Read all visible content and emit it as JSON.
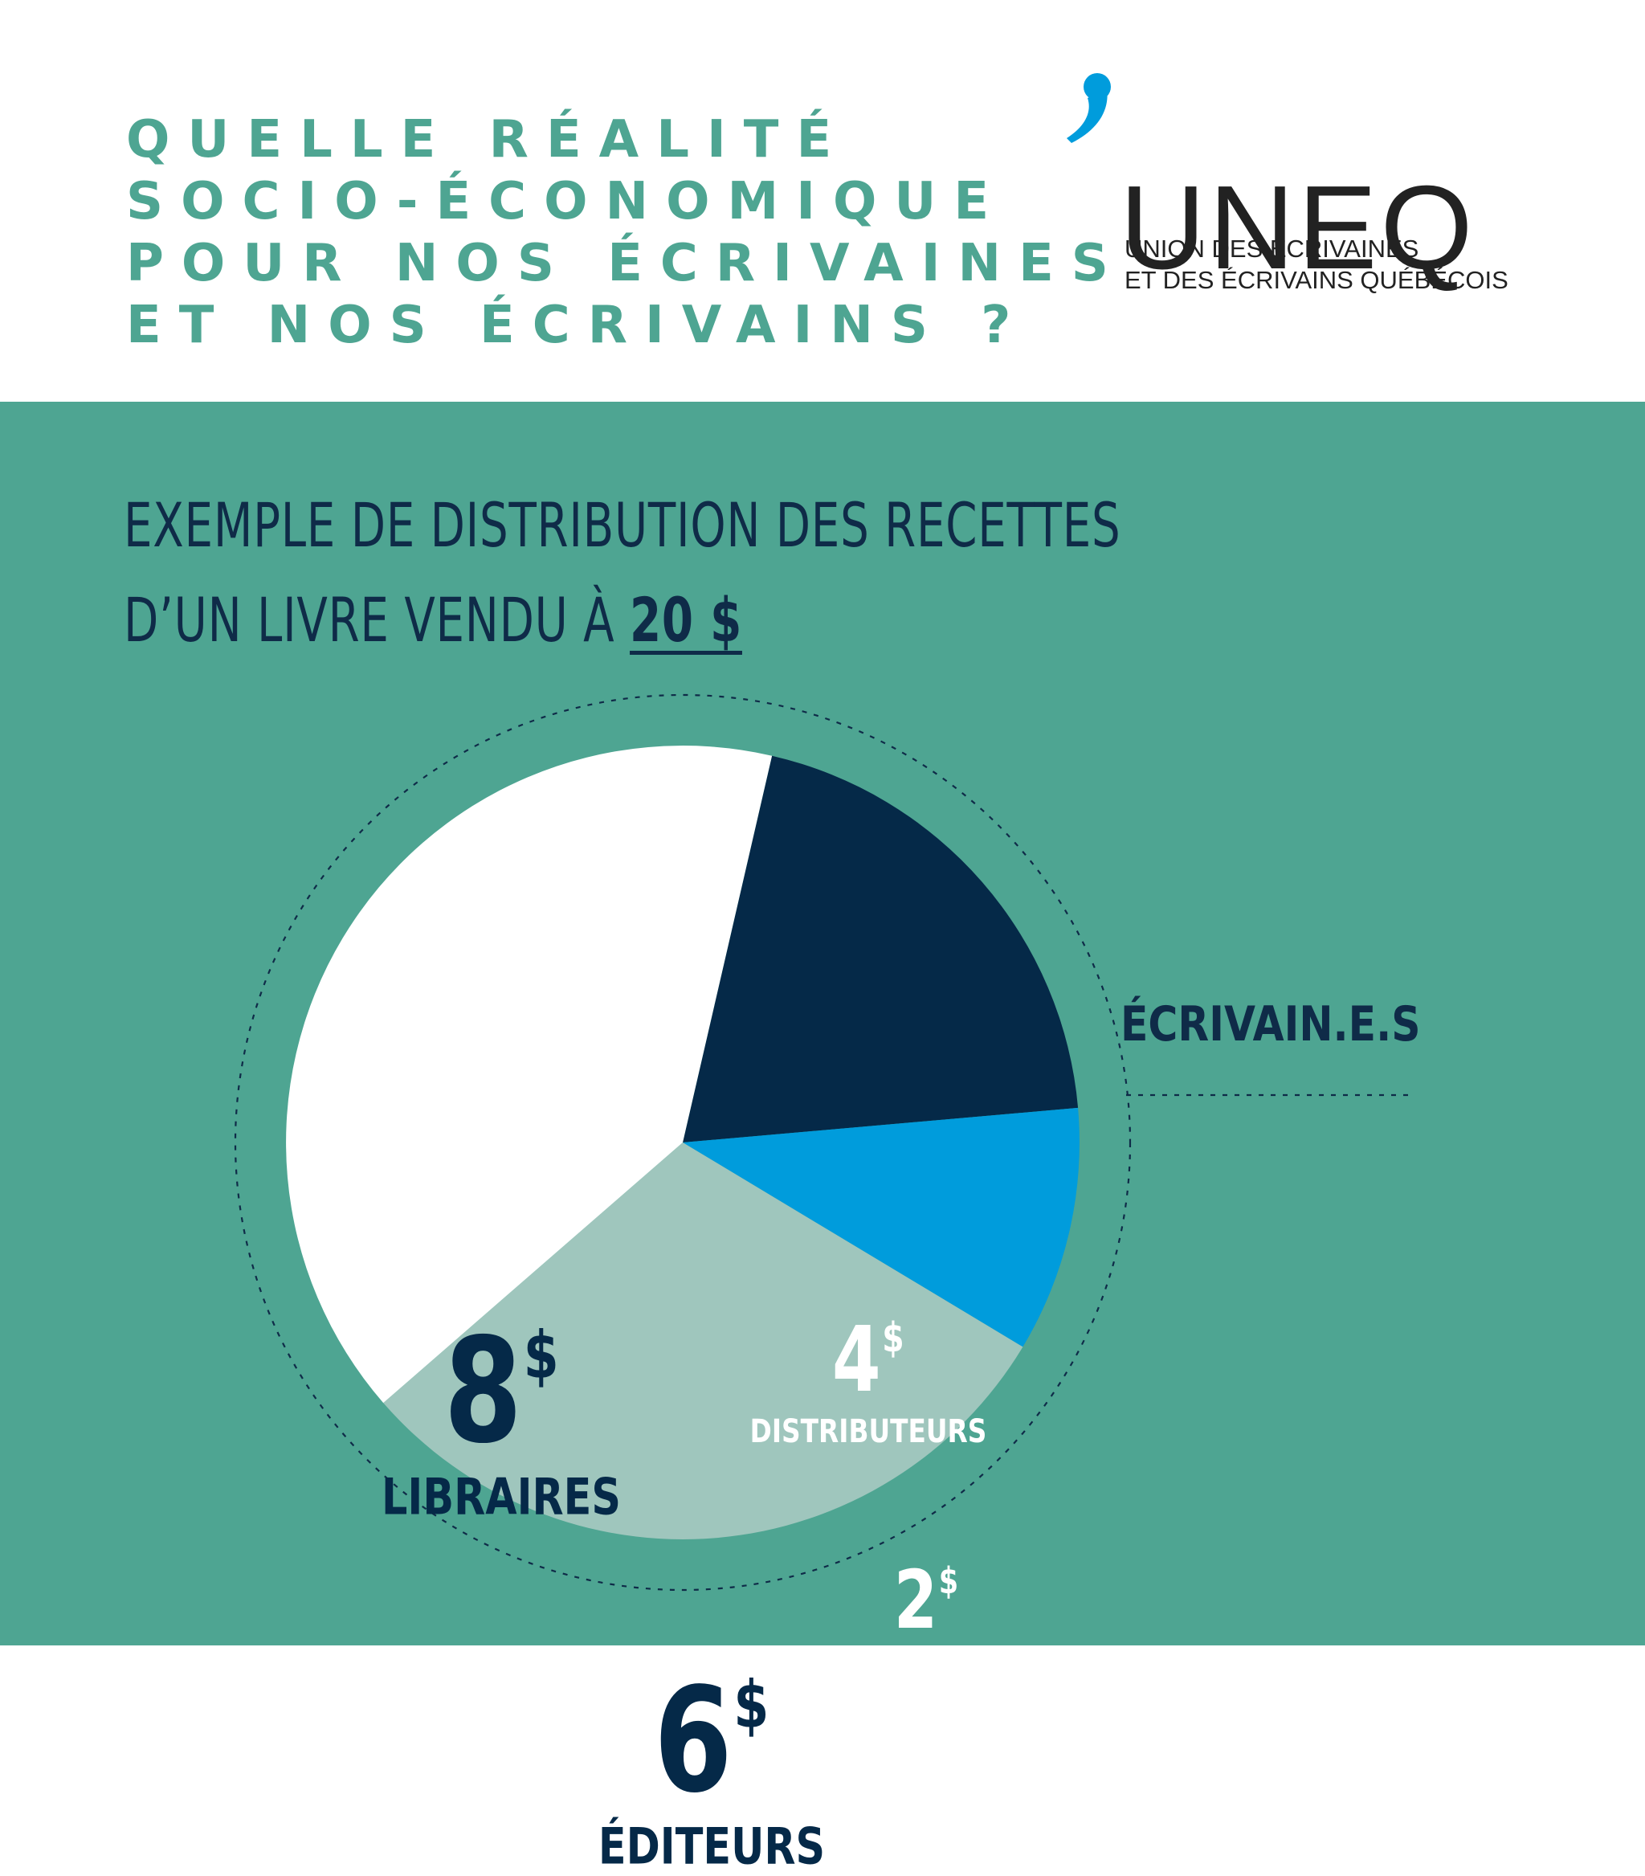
{
  "header": {
    "question_lines": [
      "QUELLE RÉALITÉ",
      "SOCIO-ÉCONOMIQUE",
      "POUR NOS ÉCRIVAINES",
      "ET NOS ÉCRIVAINS ?"
    ],
    "logo": {
      "wordmark": "UNEQ",
      "subtitle_lines": [
        "UNION DES ÉCRIVAINES",
        "ET DES ÉCRIVAINS QUÉBÉCOIS"
      ],
      "comma_color": "#009cdc"
    }
  },
  "chart_data": {
    "type": "pie",
    "title_lines": [
      "EXEMPLE DE DISTRIBUTION DES RECETTES",
      "D’UN LIVRE VENDU À"
    ],
    "title_price": "20 $",
    "total": 20,
    "currency_symbol": "$",
    "slices": [
      {
        "label": "DISTRIBUTEURS",
        "value": 4,
        "color": "#052948",
        "text_color": "#ffffff"
      },
      {
        "label": "ÉCRIVAIN.E.S",
        "value": 2,
        "color": "#009cdc",
        "text_color": "#ffffff"
      },
      {
        "label": "ÉDITEURS",
        "value": 6,
        "color": "#9fc6bd",
        "text_color": "#052948"
      },
      {
        "label": "LIBRAIRES",
        "value": 8,
        "color": "#ffffff",
        "text_color": "#052948"
      }
    ]
  },
  "colors": {
    "teal_background": "#4ea592",
    "navy_text": "#0f2b48",
    "header_text": "#4ea592"
  }
}
